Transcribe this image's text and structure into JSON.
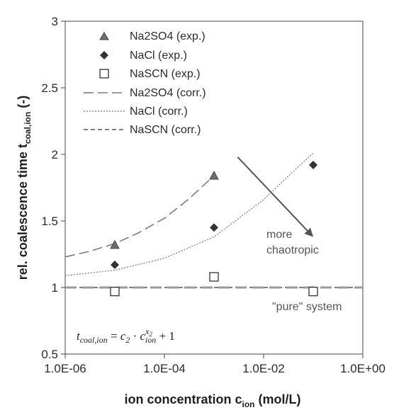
{
  "chart_data": {
    "type": "scatter",
    "x_scale": "log",
    "xlim": [
      1e-06,
      1
    ],
    "ylim": [
      0.5,
      3
    ],
    "xticks": [
      1e-06,
      0.0001,
      0.01,
      1
    ],
    "xtick_labels": [
      "1.0E-06",
      "1.0E-04",
      "1.0E-02",
      "1.0E+00"
    ],
    "yticks": [
      0.5,
      1,
      1.5,
      2,
      2.5,
      3
    ],
    "ytick_labels": [
      "0.5",
      "1",
      "1.5",
      "2",
      "2.5",
      "3"
    ],
    "xlabel": "ion concentration c",
    "xlabel_sub": "ion",
    "xlabel_unit": "(mol/L)",
    "ylabel": "rel. coalescence time t",
    "ylabel_sub": "coal,ion",
    "ylabel_unit": "(-)",
    "grid": false,
    "legend_position": "top-left",
    "series": [
      {
        "name": "Na2SO4 (exp.)",
        "kind": "points",
        "marker": "triangle",
        "color": "#6e6e6e",
        "x": [
          1e-05,
          0.001
        ],
        "y": [
          1.32,
          1.84
        ]
      },
      {
        "name": "NaCl (exp.)",
        "kind": "points",
        "marker": "diamond",
        "color": "#333333",
        "x": [
          1e-05,
          0.001,
          0.1
        ],
        "y": [
          1.17,
          1.45,
          1.92
        ]
      },
      {
        "name": "NaSCN (exp.)",
        "kind": "points",
        "marker": "square-open",
        "color": "#333333",
        "x": [
          1e-05,
          0.001,
          0.1
        ],
        "y": [
          0.97,
          1.08,
          0.97
        ]
      },
      {
        "name": "Na2SO4 (corr.)",
        "kind": "line",
        "dash": "long",
        "color": "#7a7a7a",
        "x": [
          1e-06,
          3e-06,
          1e-05,
          3e-05,
          0.0001,
          0.0003,
          0.001
        ],
        "y": [
          1.23,
          1.27,
          1.33,
          1.41,
          1.52,
          1.66,
          1.84
        ]
      },
      {
        "name": "NaCl (corr.)",
        "kind": "line",
        "dash": "dotted",
        "color": "#8a8a8a",
        "x": [
          1e-06,
          1e-05,
          0.0001,
          0.001,
          0.01,
          0.03,
          0.1
        ],
        "y": [
          1.09,
          1.13,
          1.22,
          1.38,
          1.66,
          1.83,
          2.01
        ]
      },
      {
        "name": "NaSCN (corr.)",
        "kind": "line",
        "dash": "medium",
        "color": "#555555",
        "x": [
          1e-06,
          1
        ],
        "y": [
          1.0,
          1.0
        ]
      },
      {
        "name": "\"pure\" system",
        "kind": "line",
        "dash": "thick-long",
        "color": "#9a9a9a",
        "x": [
          1e-06,
          1
        ],
        "y": [
          1.0,
          1.0
        ]
      }
    ],
    "annotations": {
      "more_label_1": "more",
      "more_label_2": "chaotropic",
      "pure_label": "\"pure\" system",
      "arrow": {
        "from": [
          0.003,
          1.98
        ],
        "to": [
          0.1,
          1.38
        ]
      }
    },
    "formula": {
      "lhs": "t",
      "lhs_sub": "coal,ion",
      "eq": " = ",
      "c2": "c",
      "c2_sub": "2",
      "dot": " · ",
      "cion": "c",
      "cion_sub": "ion",
      "cion_sup": "x",
      "cion_sup_sub": "2",
      "tail": " + 1"
    }
  }
}
